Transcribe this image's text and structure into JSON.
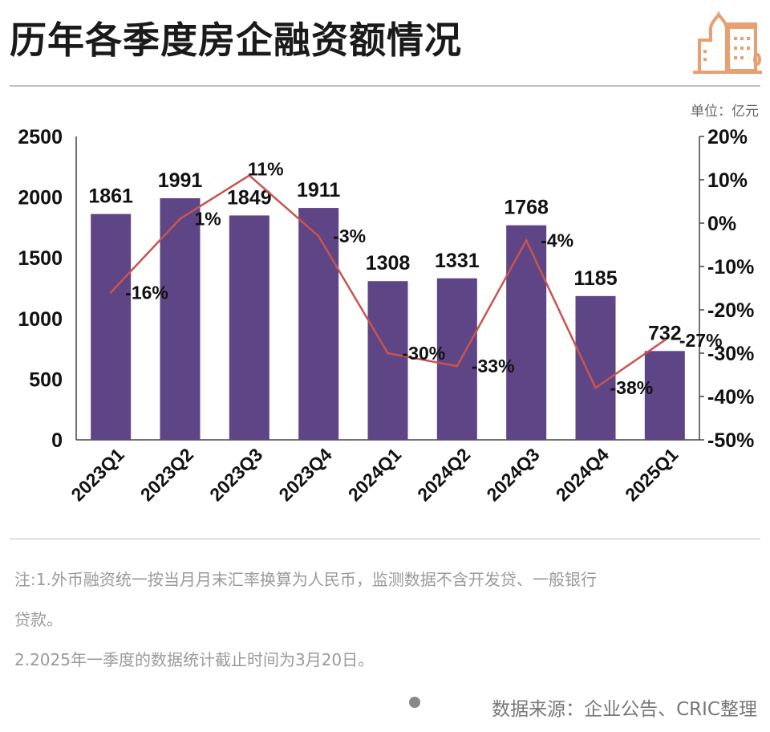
{
  "title": "历年各季度房企融资额情况",
  "unit": "单位：亿元",
  "notes": [
    "注:1.外币融资统一按当月月末汇率换算为人民币，监测数据不含开发贷、一般银行",
    "贷款。",
    "2.2025年一季度的数据统计截止时间为3月20日。"
  ],
  "source": "数据来源：企业公告、CRIC整理",
  "colors": {
    "bar": "#5e4585",
    "line": "#c9544f",
    "logo": "#e8a070"
  },
  "chart_data": {
    "type": "bar+line",
    "categories": [
      "2023Q1",
      "2023Q2",
      "2023Q3",
      "2023Q4",
      "2024Q1",
      "2024Q2",
      "2024Q3",
      "2024Q4",
      "2025Q1"
    ],
    "series": [
      {
        "type": "bar",
        "axis": "left",
        "values": [
          1861,
          1991,
          1849,
          1911,
          1308,
          1331,
          1768,
          1185,
          732
        ],
        "labels": [
          "1861",
          "1991",
          "1849",
          "1911",
          "1308",
          "1331",
          "1768",
          "1185",
          "732"
        ]
      },
      {
        "type": "line",
        "axis": "right",
        "values": [
          -16,
          1,
          11,
          -3,
          -30,
          -33,
          -4,
          -38,
          -27
        ],
        "labels": [
          "-16%",
          "1%",
          "11%",
          "-3%",
          "-30%",
          "-33%",
          "-4%",
          "-38%",
          "-27%"
        ]
      }
    ],
    "left_axis": {
      "range": [
        0,
        2500
      ],
      "ticks": [
        "0",
        "500",
        "1000",
        "1500",
        "2000",
        "2500"
      ]
    },
    "right_axis": {
      "range": [
        -50,
        20
      ],
      "ticks": [
        "-50%",
        "-40%",
        "-30%",
        "-20%",
        "-10%",
        "0%",
        "10%",
        "20%"
      ]
    },
    "grid": false
  }
}
